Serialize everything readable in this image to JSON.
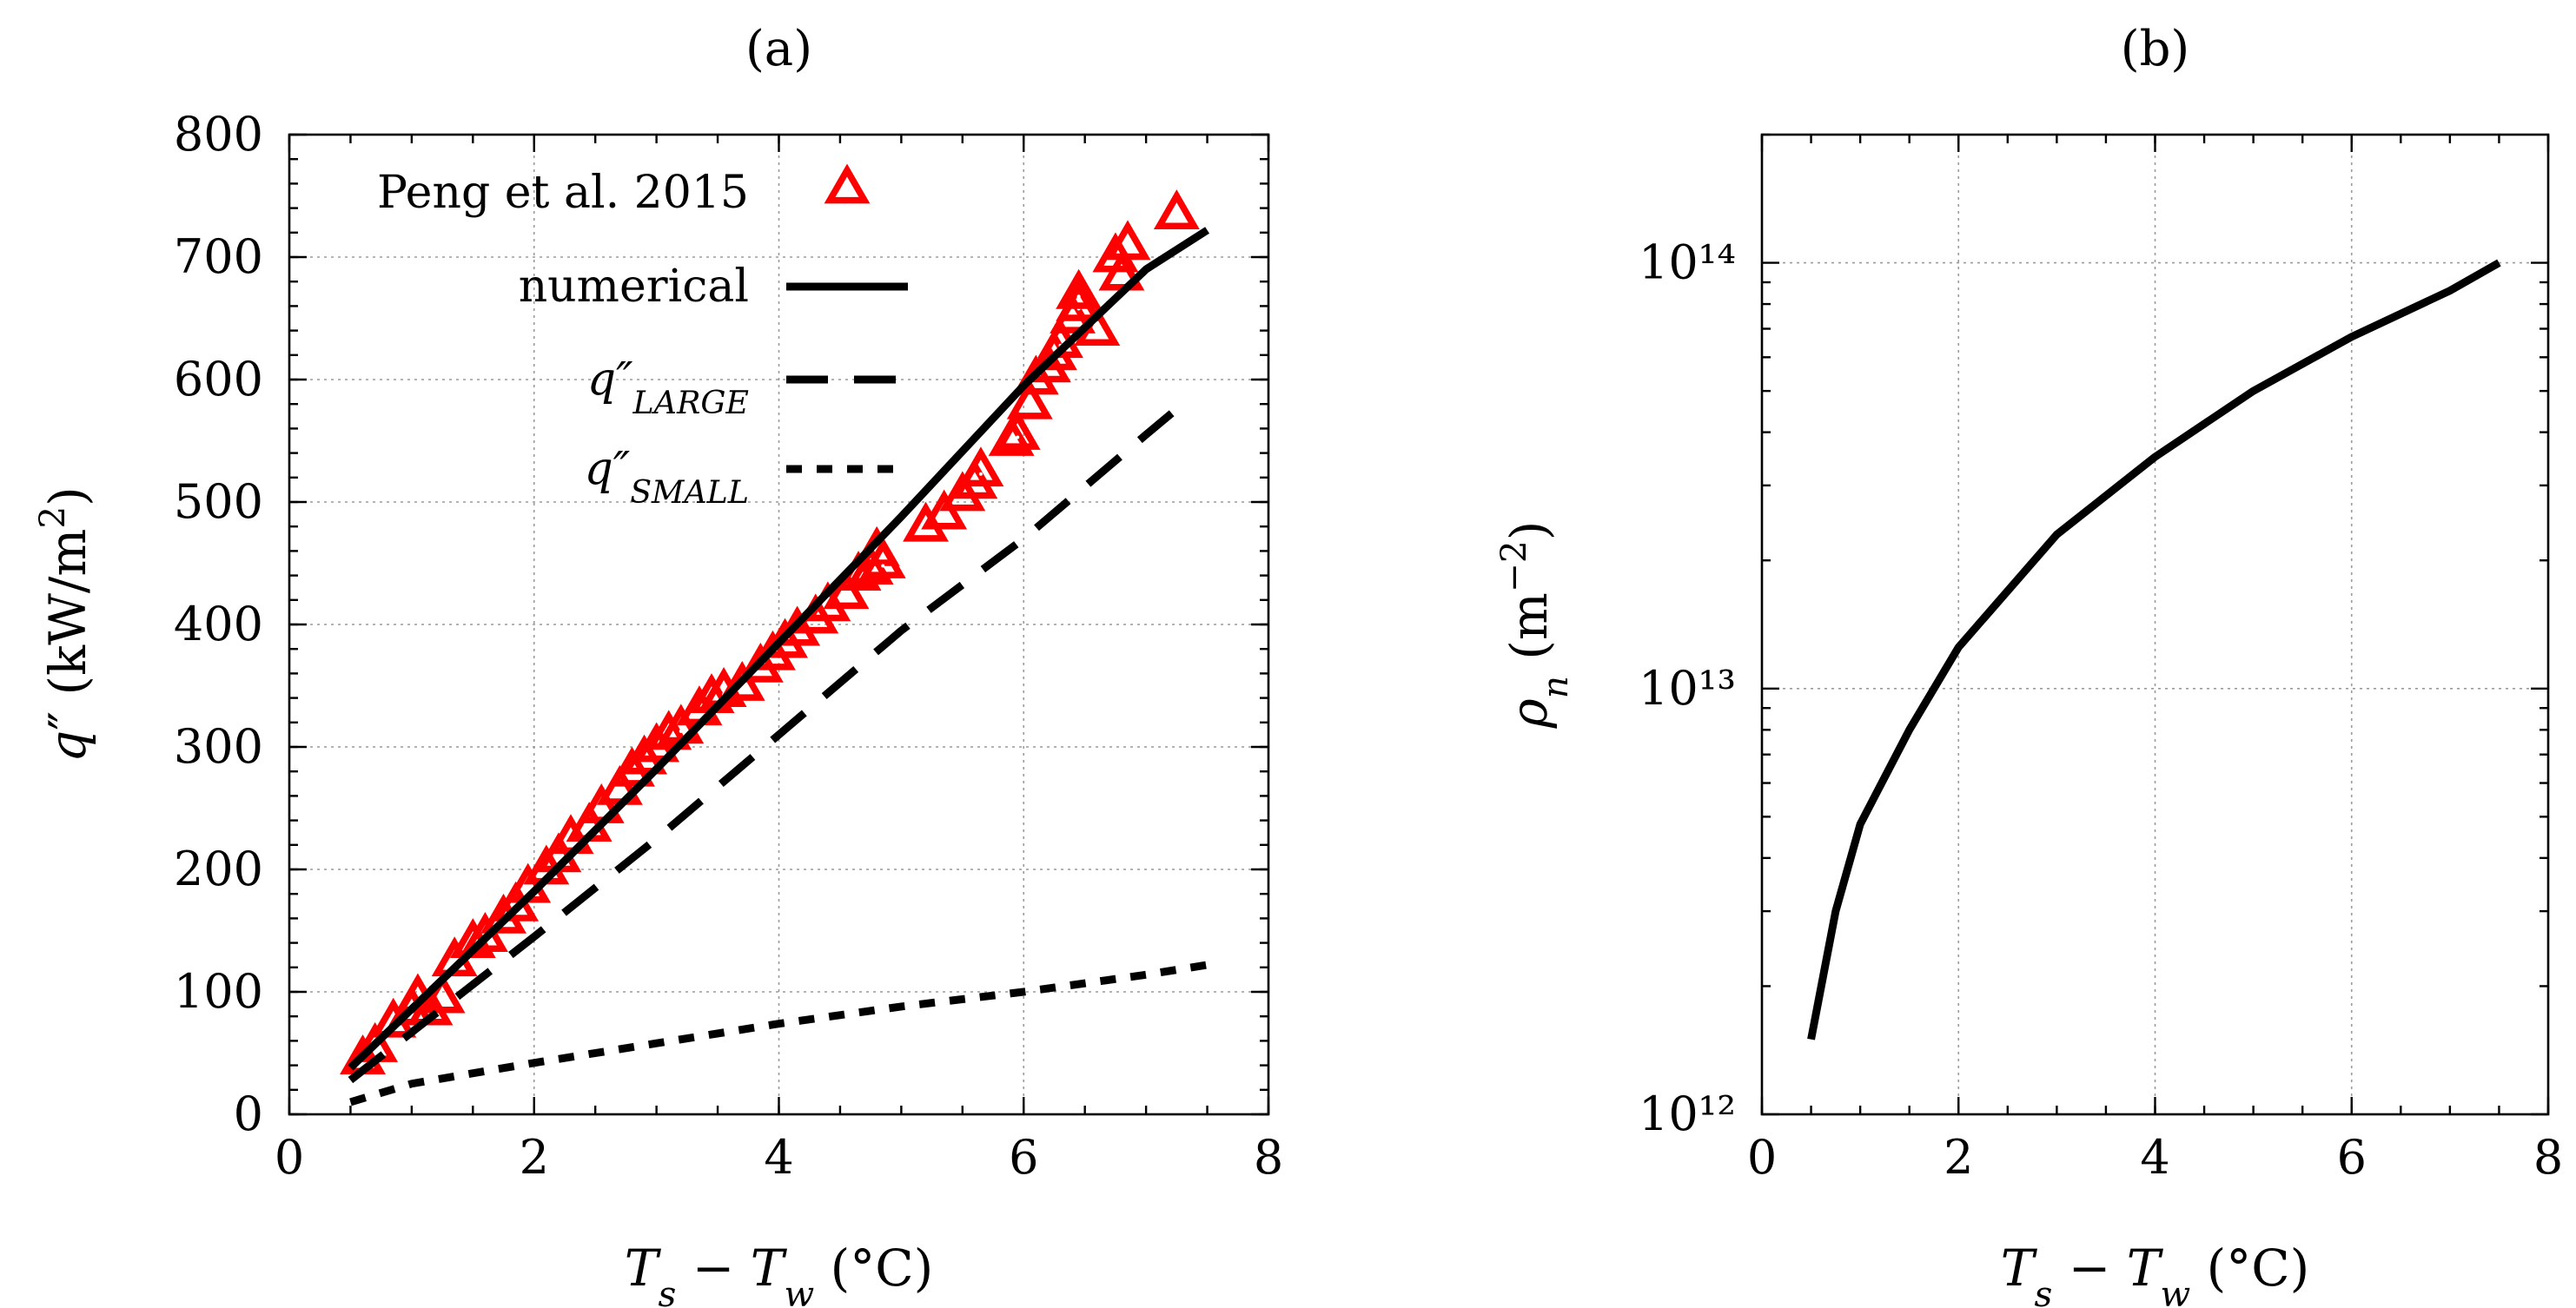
{
  "chart_data": [
    {
      "panel": "(a)",
      "type": "line",
      "title": "(a)",
      "xlabel": "T_s − T_w (°C)",
      "ylabel": "q″ (kW/m²)",
      "xlim": [
        0,
        8
      ],
      "ylim": [
        0,
        800
      ],
      "xticks": [
        "0",
        "2",
        "4",
        "6",
        "8"
      ],
      "yticks": [
        "0",
        "100",
        "200",
        "300",
        "400",
        "500",
        "600",
        "700",
        "800"
      ],
      "grid": true,
      "legend_position": "top-left",
      "series": [
        {
          "name": "Peng et al. 2015",
          "style": "markers",
          "color": "#ff0000",
          "x": [
            0.6,
            0.7,
            0.85,
            1.0,
            1.05,
            1.15,
            1.25,
            1.35,
            1.5,
            1.6,
            1.75,
            1.85,
            1.95,
            2.1,
            2.2,
            2.3,
            2.45,
            2.55,
            2.7,
            2.8,
            2.9,
            3.0,
            3.1,
            3.2,
            3.35,
            3.45,
            3.55,
            3.7,
            3.85,
            3.95,
            4.05,
            4.15,
            4.3,
            4.4,
            4.55,
            4.65,
            4.75,
            4.8,
            4.85,
            5.2,
            5.35,
            5.5,
            5.6,
            5.65,
            5.9,
            5.95,
            6.05,
            6.1,
            6.2,
            6.25,
            6.3,
            6.4,
            6.45,
            6.45,
            6.6,
            6.75,
            6.8,
            6.85,
            7.25
          ],
          "values": [
            45,
            55,
            75,
            85,
            95,
            85,
            95,
            125,
            140,
            145,
            160,
            170,
            185,
            200,
            210,
            225,
            235,
            250,
            265,
            280,
            290,
            300,
            310,
            315,
            330,
            340,
            345,
            350,
            365,
            375,
            385,
            395,
            405,
            415,
            425,
            440,
            445,
            460,
            450,
            480,
            490,
            505,
            515,
            525,
            550,
            555,
            580,
            600,
            610,
            620,
            630,
            650,
            660,
            670,
            640,
            700,
            685,
            710,
            735
          ]
        },
        {
          "name": "numerical",
          "style": "solid",
          "color": "#000000",
          "x": [
            0.5,
            1,
            2,
            3,
            4,
            5,
            6,
            7,
            7.5
          ],
          "values": [
            38,
            86,
            182,
            282,
            385,
            488,
            595,
            690,
            722
          ]
        },
        {
          "name": "q″_LARGE",
          "style": "dashed",
          "color": "#000000",
          "x": [
            0.5,
            1,
            2,
            3,
            4,
            5,
            6,
            7,
            7.3
          ],
          "values": [
            28,
            67,
            145,
            225,
            310,
            395,
            470,
            555,
            580
          ]
        },
        {
          "name": "q″_SMALL",
          "style": "dotted",
          "color": "#000000",
          "x": [
            0.5,
            1,
            2,
            3,
            4,
            5,
            6,
            7,
            7.5
          ],
          "values": [
            10,
            25,
            42,
            58,
            74,
            88,
            100,
            114,
            122
          ]
        }
      ]
    },
    {
      "panel": "(b)",
      "type": "line",
      "title": "(b)",
      "xlabel": "T_s − T_w (°C)",
      "ylabel": "ρ_n (m⁻²)",
      "xlim": [
        0,
        8
      ],
      "ylim": [
        1000000000000.0,
        200000000000000.0
      ],
      "yscale": "log",
      "xticks": [
        "0",
        "2",
        "4",
        "6",
        "8"
      ],
      "yticks": [
        "10¹²",
        "10¹³",
        "10¹⁴"
      ],
      "grid": true,
      "series": [
        {
          "name": "ρ_n",
          "style": "solid",
          "color": "#000000",
          "x": [
            0.5,
            0.75,
            1,
            1.5,
            2,
            3,
            4,
            5,
            6,
            7,
            7.5
          ],
          "values": [
            1500000000000.0,
            3000000000000.0,
            4800000000000.0,
            8000000000000.0,
            12500000000000.0,
            23000000000000.0,
            35000000000000.0,
            50000000000000.0,
            67000000000000.0,
            86000000000000.0,
            100000000000000.0
          ]
        }
      ]
    }
  ]
}
